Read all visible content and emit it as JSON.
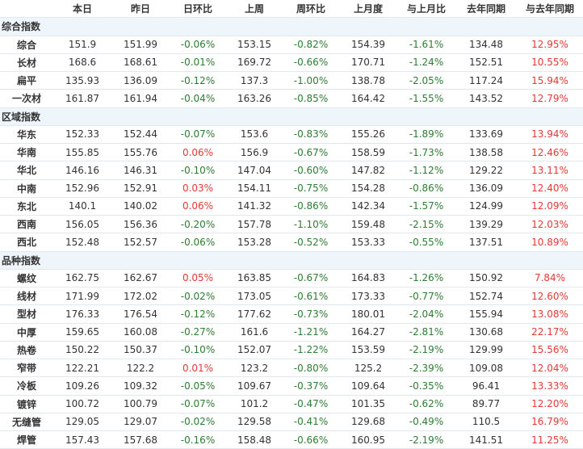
{
  "colors": {
    "negative": "#2e7d32",
    "positive": "#e53935",
    "section_bg": "#eef6fc"
  },
  "headers": [
    "",
    "本日",
    "昨日",
    "日环比",
    "上周",
    "周环比",
    "上月度",
    "与上月比",
    "去年同期",
    "与去年同期"
  ],
  "sections": [
    {
      "title": "综合指数",
      "rows": [
        [
          "综合",
          "151.9",
          "151.99",
          "-0.06%",
          "153.15",
          "-0.82%",
          "154.39",
          "-1.61%",
          "134.48",
          "12.95%"
        ],
        [
          "长材",
          "168.6",
          "168.61",
          "-0.01%",
          "169.72",
          "-0.66%",
          "170.71",
          "-1.24%",
          "152.51",
          "10.55%"
        ],
        [
          "扁平",
          "135.93",
          "136.09",
          "-0.12%",
          "137.3",
          "-1.00%",
          "138.78",
          "-2.05%",
          "117.24",
          "15.94%"
        ],
        [
          "一次材",
          "161.87",
          "161.94",
          "-0.04%",
          "163.26",
          "-0.85%",
          "164.42",
          "-1.55%",
          "143.52",
          "12.79%"
        ]
      ]
    },
    {
      "title": "区域指数",
      "rows": [
        [
          "华东",
          "152.33",
          "152.44",
          "-0.07%",
          "153.6",
          "-0.83%",
          "155.26",
          "-1.89%",
          "133.69",
          "13.94%"
        ],
        [
          "华南",
          "155.85",
          "155.76",
          "0.06%",
          "156.9",
          "-0.67%",
          "158.59",
          "-1.73%",
          "138.58",
          "12.46%"
        ],
        [
          "华北",
          "146.16",
          "146.31",
          "-0.10%",
          "147.04",
          "-0.60%",
          "147.82",
          "-1.12%",
          "129.22",
          "13.11%"
        ],
        [
          "中南",
          "152.96",
          "152.91",
          "0.03%",
          "154.11",
          "-0.75%",
          "154.28",
          "-0.86%",
          "136.09",
          "12.40%"
        ],
        [
          "东北",
          "140.1",
          "140.02",
          "0.06%",
          "141.32",
          "-0.86%",
          "142.34",
          "-1.57%",
          "124.99",
          "12.09%"
        ],
        [
          "西南",
          "156.05",
          "156.36",
          "-0.20%",
          "157.78",
          "-1.10%",
          "159.48",
          "-2.15%",
          "139.29",
          "12.03%"
        ],
        [
          "西北",
          "152.48",
          "152.57",
          "-0.06%",
          "153.28",
          "-0.52%",
          "153.33",
          "-0.55%",
          "137.51",
          "10.89%"
        ]
      ]
    },
    {
      "title": "品种指数",
      "rows": [
        [
          "螺纹",
          "162.75",
          "162.67",
          "0.05%",
          "163.85",
          "-0.67%",
          "164.83",
          "-1.26%",
          "150.92",
          "7.84%"
        ],
        [
          "线材",
          "171.99",
          "172.02",
          "-0.02%",
          "173.05",
          "-0.61%",
          "173.33",
          "-0.77%",
          "152.74",
          "12.60%"
        ],
        [
          "型材",
          "176.33",
          "176.54",
          "-0.12%",
          "177.62",
          "-0.73%",
          "180.01",
          "-2.04%",
          "155.94",
          "13.08%"
        ],
        [
          "中厚",
          "159.65",
          "160.08",
          "-0.27%",
          "161.6",
          "-1.21%",
          "164.27",
          "-2.81%",
          "130.68",
          "22.17%"
        ],
        [
          "热卷",
          "150.22",
          "150.37",
          "-0.10%",
          "152.07",
          "-1.22%",
          "153.59",
          "-2.19%",
          "129.99",
          "15.56%"
        ],
        [
          "窄带",
          "122.21",
          "122.2",
          "0.01%",
          "123.2",
          "-0.80%",
          "125.2",
          "-2.39%",
          "109.08",
          "12.04%"
        ],
        [
          "冷板",
          "109.26",
          "109.32",
          "-0.05%",
          "109.67",
          "-0.37%",
          "109.64",
          "-0.35%",
          "96.41",
          "13.33%"
        ],
        [
          "镀锌",
          "100.72",
          "100.79",
          "-0.07%",
          "101.2",
          "-0.47%",
          "101.35",
          "-0.62%",
          "89.77",
          "12.20%"
        ],
        [
          "无缝管",
          "129.05",
          "129.07",
          "-0.02%",
          "129.58",
          "-0.41%",
          "129.68",
          "-0.49%",
          "110.5",
          "16.79%"
        ],
        [
          "焊管",
          "157.43",
          "157.68",
          "-0.16%",
          "158.48",
          "-0.66%",
          "160.95",
          "-2.19%",
          "141.51",
          "11.25%"
        ]
      ]
    }
  ]
}
